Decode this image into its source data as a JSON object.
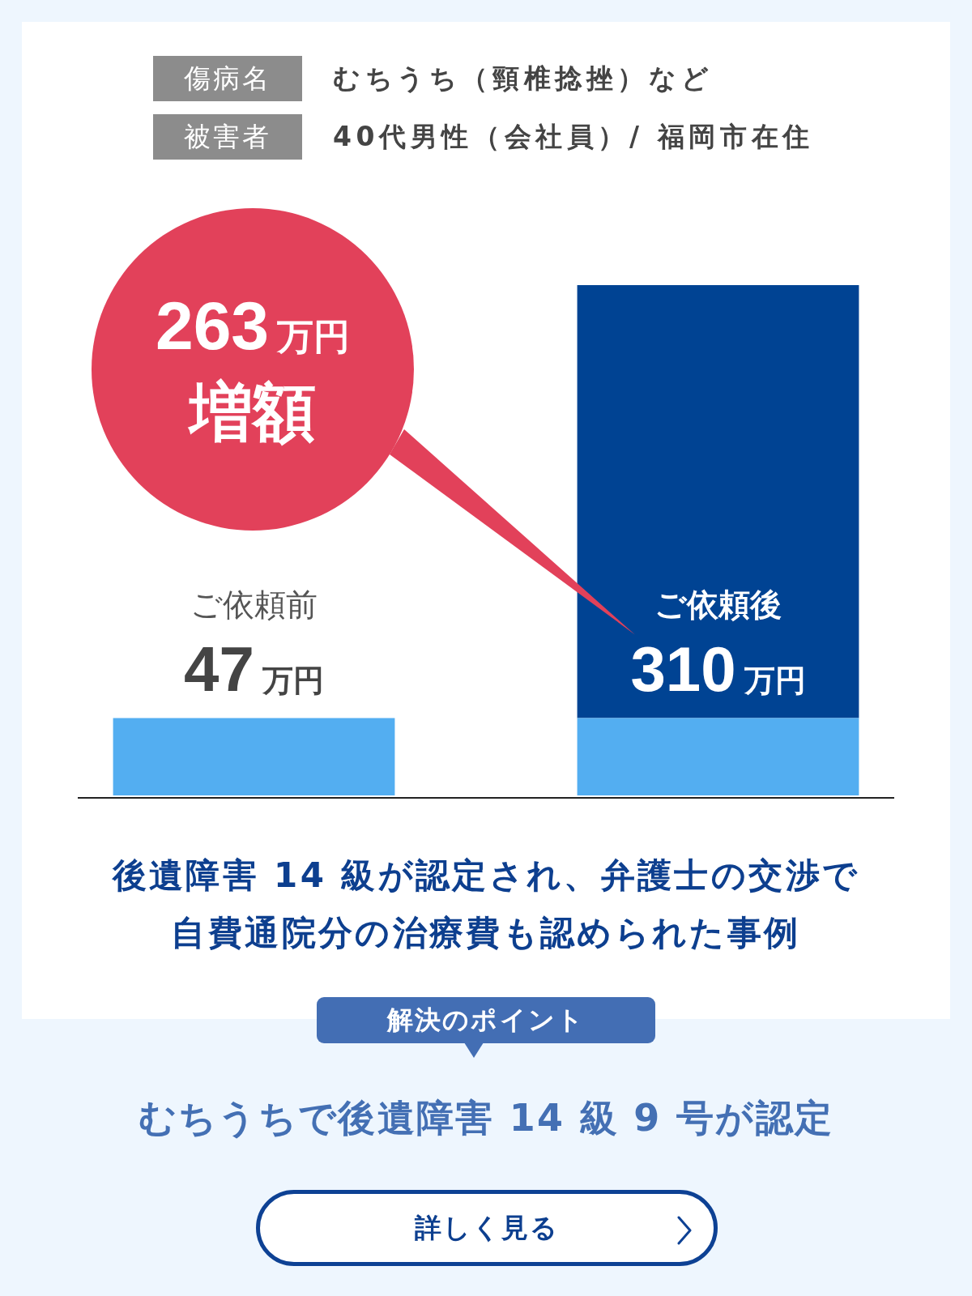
{
  "chart_data": {
    "type": "bar",
    "stacked": true,
    "title": "後遺障害 14 級が認定され、弁護士の交渉で自費通院分の治療費も認められた事例",
    "categories": [
      "ご依頼前",
      "ご依頼後"
    ],
    "series": [
      {
        "color": "#53aef1",
        "values": [
          47,
          47
        ],
        "value_labels": [
          "47万円",
          null
        ]
      },
      {
        "color": "#004393",
        "values": [
          null,
          263
        ]
      }
    ],
    "totals": [
      null,
      "310万円"
    ],
    "tick_labels": "x",
    "annotations": [
      "傷病名",
      "むちうち（頸椎捻挫）など",
      "被害者",
      "40代男性（会社員）/ 福岡市在住",
      "263万円",
      "増額",
      "解決のポイント",
      "むちうちで後遺障害 14 級 9 号が認定",
      "詳しく見る"
    ]
  }
}
